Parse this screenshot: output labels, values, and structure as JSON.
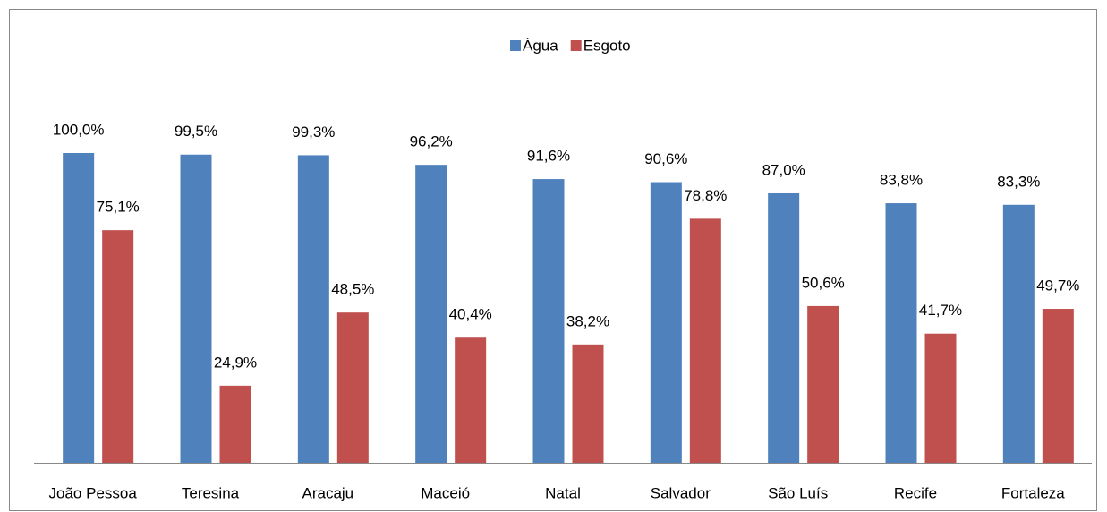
{
  "chart_data": {
    "type": "bar",
    "categories": [
      "João Pessoa",
      "Teresina",
      "Aracaju",
      "Maceió",
      "Natal",
      "Salvador",
      "São Luís",
      "Recife",
      "Fortaleza"
    ],
    "series": [
      {
        "name": "Água",
        "color": "#4f81bd",
        "values": [
          100.0,
          99.5,
          99.3,
          96.2,
          91.6,
          90.6,
          87.0,
          83.8,
          83.3
        ],
        "value_labels": [
          "100,0%",
          "99,5%",
          "99,3%",
          "96,2%",
          "91,6%",
          "90,6%",
          "87,0%",
          "83,8%",
          "83,3%"
        ]
      },
      {
        "name": "Esgoto",
        "color": "#c0504d",
        "values": [
          75.1,
          24.9,
          48.5,
          40.4,
          38.2,
          78.8,
          50.6,
          41.7,
          49.7
        ],
        "value_labels": [
          "75,1%",
          "24,9%",
          "48,5%",
          "40,4%",
          "38,2%",
          "78,8%",
          "50,6%",
          "41,7%",
          "49,7%"
        ]
      }
    ],
    "legend": "top"
  }
}
